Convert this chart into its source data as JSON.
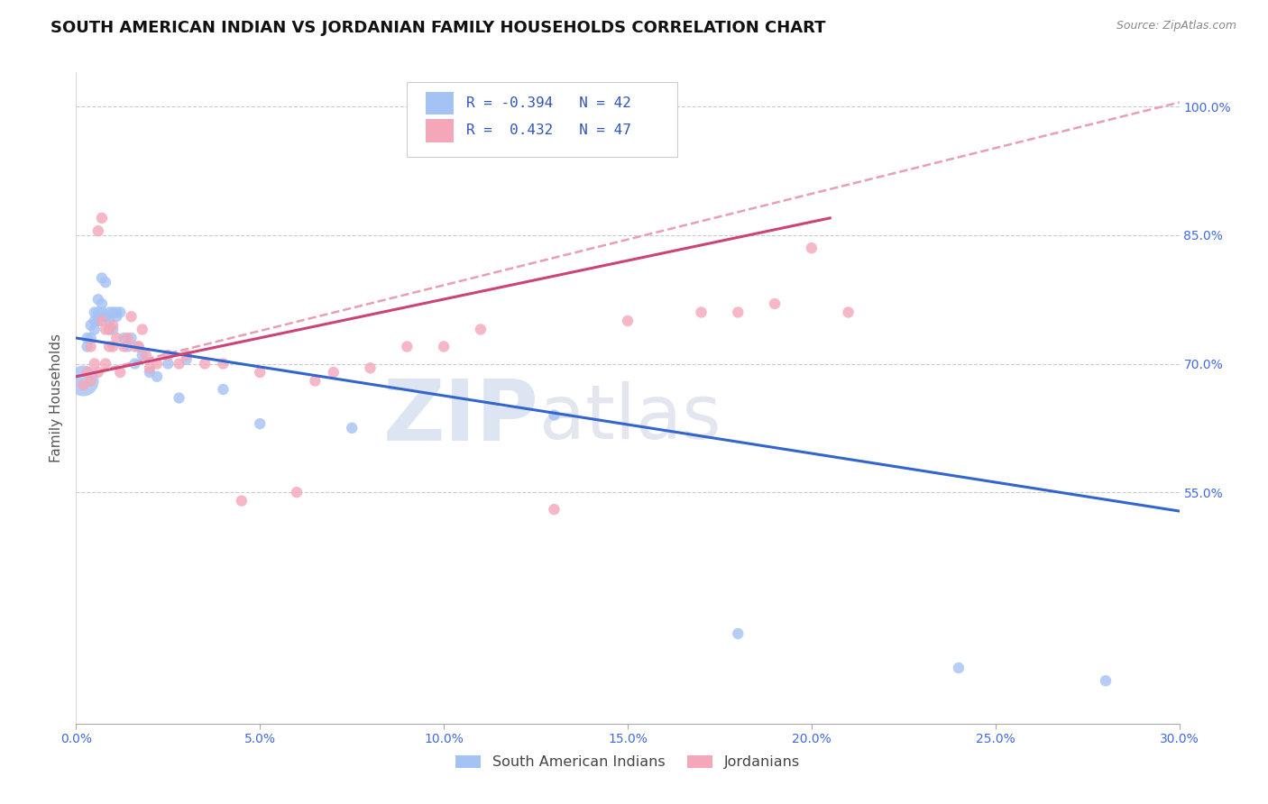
{
  "title": "SOUTH AMERICAN INDIAN VS JORDANIAN FAMILY HOUSEHOLDS CORRELATION CHART",
  "source": "Source: ZipAtlas.com",
  "ylabel": "Family Households",
  "xlim": [
    0.0,
    0.3
  ],
  "ylim": [
    0.28,
    1.04
  ],
  "xtick_labels": [
    "0.0%",
    "5.0%",
    "10.0%",
    "15.0%",
    "20.0%",
    "25.0%",
    "30.0%"
  ],
  "xtick_vals": [
    0.0,
    0.05,
    0.1,
    0.15,
    0.2,
    0.25,
    0.3
  ],
  "ytick_labels": [
    "55.0%",
    "70.0%",
    "85.0%",
    "100.0%"
  ],
  "ytick_vals": [
    0.55,
    0.7,
    0.85,
    1.0
  ],
  "color_blue": "#a4c2f4",
  "color_pink": "#f4a7b9",
  "color_blue_line": "#3366cc",
  "color_pink_line": "#cc4477",
  "color_dashed": "#e8a0b0",
  "watermark_zip": "ZIP",
  "watermark_atlas": "atlas",
  "blue_scatter_x": [
    0.002,
    0.003,
    0.003,
    0.004,
    0.004,
    0.005,
    0.005,
    0.005,
    0.006,
    0.006,
    0.006,
    0.007,
    0.007,
    0.007,
    0.008,
    0.008,
    0.009,
    0.009,
    0.009,
    0.01,
    0.01,
    0.011,
    0.011,
    0.012,
    0.013,
    0.014,
    0.015,
    0.016,
    0.017,
    0.018,
    0.02,
    0.022,
    0.025,
    0.028,
    0.03,
    0.04,
    0.05,
    0.075,
    0.13,
    0.18,
    0.24,
    0.28
  ],
  "blue_scatter_y": [
    0.68,
    0.73,
    0.72,
    0.745,
    0.73,
    0.76,
    0.75,
    0.74,
    0.775,
    0.76,
    0.75,
    0.8,
    0.77,
    0.76,
    0.795,
    0.755,
    0.76,
    0.75,
    0.74,
    0.76,
    0.74,
    0.76,
    0.755,
    0.76,
    0.73,
    0.72,
    0.73,
    0.7,
    0.72,
    0.71,
    0.69,
    0.685,
    0.7,
    0.66,
    0.705,
    0.67,
    0.63,
    0.625,
    0.64,
    0.385,
    0.345,
    0.33
  ],
  "blue_scatter_sizes": [
    80,
    80,
    80,
    80,
    80,
    80,
    80,
    80,
    80,
    80,
    80,
    80,
    80,
    80,
    80,
    80,
    80,
    80,
    80,
    80,
    80,
    80,
    80,
    80,
    80,
    80,
    80,
    80,
    80,
    80,
    80,
    80,
    80,
    80,
    80,
    80,
    80,
    80,
    80,
    80,
    80,
    80
  ],
  "blue_large_idx": 0,
  "blue_large_size": 600,
  "pink_scatter_x": [
    0.002,
    0.003,
    0.004,
    0.004,
    0.005,
    0.006,
    0.006,
    0.007,
    0.007,
    0.008,
    0.008,
    0.009,
    0.009,
    0.01,
    0.01,
    0.011,
    0.012,
    0.013,
    0.014,
    0.015,
    0.016,
    0.017,
    0.018,
    0.019,
    0.02,
    0.022,
    0.025,
    0.028,
    0.03,
    0.035,
    0.04,
    0.045,
    0.05,
    0.06,
    0.065,
    0.07,
    0.08,
    0.09,
    0.1,
    0.11,
    0.13,
    0.15,
    0.17,
    0.18,
    0.19,
    0.2,
    0.21
  ],
  "pink_scatter_y": [
    0.675,
    0.69,
    0.68,
    0.72,
    0.7,
    0.855,
    0.69,
    0.87,
    0.75,
    0.7,
    0.74,
    0.72,
    0.74,
    0.72,
    0.745,
    0.73,
    0.69,
    0.72,
    0.73,
    0.755,
    0.72,
    0.72,
    0.74,
    0.71,
    0.695,
    0.7,
    0.71,
    0.7,
    0.71,
    0.7,
    0.7,
    0.54,
    0.69,
    0.55,
    0.68,
    0.69,
    0.695,
    0.72,
    0.72,
    0.74,
    0.53,
    0.75,
    0.76,
    0.76,
    0.77,
    0.835,
    0.76
  ],
  "pink_scatter_sizes": [
    80,
    80,
    80,
    80,
    80,
    80,
    80,
    80,
    80,
    80,
    80,
    80,
    80,
    80,
    80,
    80,
    80,
    80,
    80,
    80,
    80,
    80,
    80,
    80,
    80,
    80,
    80,
    80,
    80,
    80,
    80,
    80,
    80,
    80,
    80,
    80,
    80,
    80,
    80,
    80,
    80,
    80,
    80,
    80,
    80,
    80,
    80
  ],
  "blue_line_x": [
    0.0,
    0.3
  ],
  "blue_line_y": [
    0.73,
    0.528
  ],
  "pink_line_x": [
    0.0,
    0.205
  ],
  "pink_line_y": [
    0.685,
    0.87
  ],
  "dashed_line_x": [
    0.0,
    0.3
  ],
  "dashed_line_y": [
    0.685,
    1.005
  ]
}
